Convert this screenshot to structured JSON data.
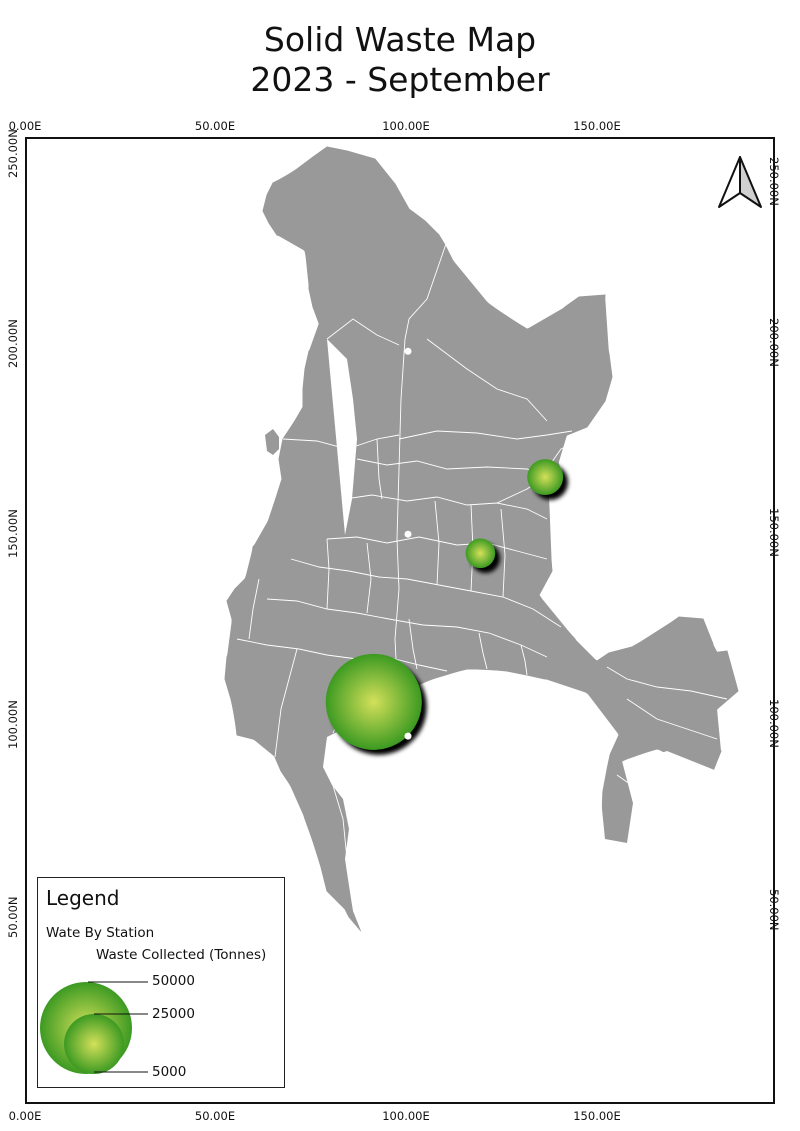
{
  "map": {
    "title_line1": "Solid Waste Map",
    "title_line2": "2023 - September",
    "grid": {
      "x_ticks_top": [
        "0.00E",
        "50.00E",
        "100.00E",
        "150.00E"
      ],
      "x_ticks_bottom": [
        "0.00E",
        "50.00E",
        "100.00E",
        "150.00E"
      ],
      "y_ticks_left": [
        "250.00N",
        "200.00N",
        "150.00N",
        "100.00N",
        "50.00N"
      ],
      "y_ticks_right": [
        "250.00N",
        "200.00N",
        "150.00N",
        "100.00N",
        "50.00N"
      ]
    },
    "land_color": "#999999",
    "boundary_color": "#ffffff",
    "symbol_color_center": "#d4e05a",
    "symbol_color_edge": "#3c9a22",
    "north_arrow": "north-arrow-icon",
    "stations": [
      {
        "name": "station-large",
        "x_e": 91,
        "y_n": 107,
        "waste_tonnes": 50000
      },
      {
        "name": "station-north-east",
        "x_e": 136,
        "y_n": 166,
        "waste_tonnes": 5000
      },
      {
        "name": "station-central",
        "x_e": 119,
        "y_n": 146,
        "waste_tonnes": 3000
      }
    ],
    "markers": [
      {
        "x_e": 100,
        "y_n": 199
      },
      {
        "x_e": 100,
        "y_n": 151
      },
      {
        "x_e": 100,
        "y_n": 98
      }
    ]
  },
  "legend": {
    "title": "Legend",
    "layer_name": "Wate By Station",
    "field_name": "Waste Collected (Tonnes)",
    "values": [
      "50000",
      "25000",
      "5000"
    ]
  }
}
